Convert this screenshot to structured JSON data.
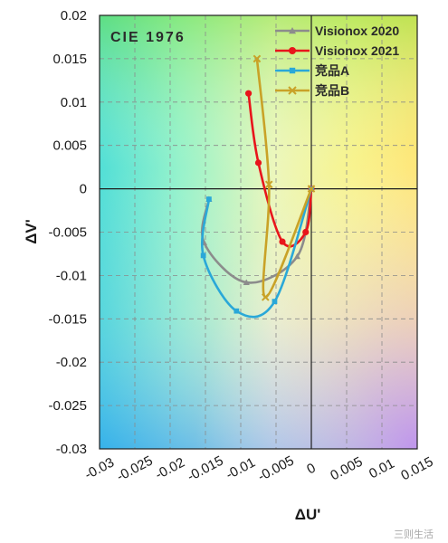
{
  "chart_data": {
    "type": "line",
    "title": "CIE 1976",
    "xlabel": "ΔU'",
    "ylabel": "ΔV'",
    "xlim": [
      -0.03,
      0.015
    ],
    "ylim": [
      -0.03,
      0.02
    ],
    "xticks": [
      -0.03,
      -0.025,
      -0.02,
      -0.015,
      -0.01,
      -0.005,
      0,
      0.005,
      0.01,
      0.015
    ],
    "xtick_labels": [
      "-0.03",
      "-0.025",
      "-0.02",
      "-0.015",
      "-0.01",
      "-0.005",
      "0",
      "0.005",
      "0.01",
      "0.015"
    ],
    "yticks": [
      0.02,
      0.015,
      0.01,
      0.005,
      0,
      -0.005,
      -0.01,
      -0.015,
      -0.02,
      -0.025,
      -0.03
    ],
    "ytick_labels": [
      "0.02",
      "0.015",
      "0.01",
      "0.005",
      "0",
      "-0.005",
      "-0.01",
      "-0.015",
      "-0.02",
      "-0.025",
      "-0.03"
    ],
    "grid": true,
    "legend_position": "top-right",
    "background": "CIE chromaticity color gradient",
    "series": [
      {
        "name": "Visionox 2020",
        "color": "#8c8c8c",
        "marker": "triangle",
        "points": [
          [
            0,
            0
          ],
          [
            -0.002,
            -0.0078
          ],
          [
            -0.0092,
            -0.0108
          ],
          [
            -0.0152,
            -0.0062
          ],
          [
            -0.0145,
            -0.0012
          ]
        ]
      },
      {
        "name": "Visionox 2021",
        "color": "#e8151b",
        "marker": "circle",
        "points": [
          [
            0,
            0
          ],
          [
            -0.0008,
            -0.005
          ],
          [
            -0.0041,
            -0.0061
          ],
          [
            -0.0075,
            0.003
          ],
          [
            -0.0089,
            0.011
          ]
        ]
      },
      {
        "name": "竞品A",
        "color": "#2aa8d8",
        "marker": "square",
        "points": [
          [
            0,
            0
          ],
          [
            -0.0052,
            -0.013
          ],
          [
            -0.0106,
            -0.0141
          ],
          [
            -0.0153,
            -0.0077
          ],
          [
            -0.0145,
            -0.0012
          ]
        ]
      },
      {
        "name": "竞品B",
        "color": "#c9a227",
        "marker": "x",
        "points": [
          [
            0,
            0
          ],
          [
            -0.0065,
            -0.0125
          ],
          [
            -0.006,
            0.0005
          ],
          [
            -0.0077,
            0.015
          ]
        ]
      }
    ]
  },
  "watermark_text": "三则生活"
}
